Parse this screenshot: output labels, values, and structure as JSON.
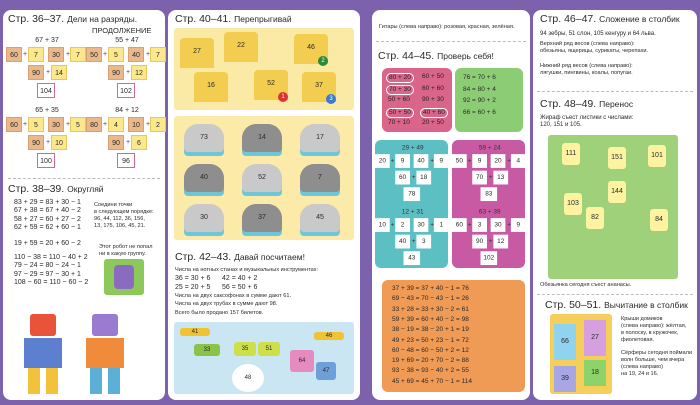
{
  "colors": {
    "background": "#7c62ad",
    "tan_box": "#e9b98b",
    "yellow_box": "#fbe78c",
    "pink_panel": "#d9658a",
    "green_panel": "#8ccc74",
    "teal_panel": "#5bbfc4",
    "magenta_panel": "#c85aa3",
    "orange_panel": "#ef9a55"
  },
  "s36": {
    "title": "Стр. 36–37.",
    "subtitle": "Дели на разряды.",
    "subtitle2": "ПРОДОЛЖЕНИЕ",
    "diagrams": [
      {
        "expr": "67 + 37",
        "parts": [
          "60",
          "7",
          "30",
          "7"
        ],
        "sums": [
          "90",
          "14"
        ],
        "total": "104"
      },
      {
        "expr": "55 + 47",
        "parts": [
          "50",
          "5",
          "40",
          "7"
        ],
        "sums": [
          "90",
          "12"
        ],
        "total": "102"
      },
      {
        "expr": "65 + 35",
        "parts": [
          "60",
          "5",
          "30",
          "5"
        ],
        "sums": [
          "90",
          "10"
        ],
        "total": "100"
      },
      {
        "expr": "84 + 12",
        "parts": [
          "80",
          "4",
          "10",
          "2"
        ],
        "sums": [
          "90",
          "6"
        ],
        "total": "96"
      }
    ]
  },
  "s38": {
    "title": "Стр. 38–39.",
    "subtitle": "Округляй",
    "eq1": [
      "83 + 29 = 83 + 30 − 1",
      "67 + 38 = 67 + 40 − 2",
      "58 + 27 = 60 + 27 − 2",
      "62 + 59 = 62 + 60 − 1"
    ],
    "eq2": [
      "19 + 59 = 20 + 60 − 2"
    ],
    "eq3": [
      "110 − 38 = 110 − 40 + 2",
      "79 − 24 = 80 − 24 − 1",
      "97 − 29 = 97 − 30 + 1",
      "108 − 60 = 110 − 60 − 2"
    ],
    "dots_note": [
      "Соедини точки",
      "в следующем порядке:",
      "96, 44, 112, 36, 156,",
      "13, 175, 106, 45, 21."
    ],
    "robot_note": [
      "Этот робот не попал",
      "ни в какую группу."
    ]
  },
  "s40": {
    "title": "Стр. 40–41.",
    "subtitle": "Перепрыгивай",
    "castles": [
      "27",
      "22",
      "46",
      "16",
      "52",
      "37"
    ],
    "ribbons": [
      "1",
      "2",
      "3"
    ],
    "rocks": [
      "73",
      "14",
      "17",
      "40",
      "52",
      "7",
      "30",
      "37",
      "45"
    ]
  },
  "s42": {
    "title": "Стр. 42–43.",
    "subtitle": "Давай посчитаем!",
    "lines": [
      "Числа на нотных станах и музыкальных инструментах:",
      "Числа на двух саксофонах в сумме дают 61.",
      "Числа на двух трубах в сумме дают 98.",
      "Всего было продано 157 билетов."
    ],
    "eqs": [
      [
        "36 = 30 + 6",
        "42 = 40 + 2"
      ],
      [
        "25 = 20 + 5",
        "56 = 50 + 6"
      ]
    ],
    "drums": [
      "41",
      "33",
      "35",
      "51",
      "48",
      "64",
      "47",
      "46"
    ]
  },
  "s44": {
    "top_note": "Гитары (слева направо): розовая, красная, зелёная.",
    "title": "Стр. 44–45.",
    "subtitle": "Проверь себя!",
    "pink": [
      [
        "80 + 20",
        "60 + 50"
      ],
      [
        "70 + 30",
        "60 + 60"
      ],
      [
        "50 + 60",
        "90 + 30"
      ],
      [
        "50 + 50",
        "40 + 60"
      ],
      [
        "70 + 10",
        "20 + 50"
      ]
    ],
    "pink_circled": [
      [
        true,
        false
      ],
      [
        true,
        false
      ],
      [
        false,
        false
      ],
      [
        true,
        true
      ],
      [
        false,
        false
      ]
    ],
    "green": [
      "76 = 70 + 6",
      "84 = 80 + 4",
      "92 = 90 + 2",
      "66 = 60 + 6"
    ],
    "teal": [
      {
        "expr": "29 + 49",
        "parts": [
          "20",
          "9",
          "40",
          "9"
        ],
        "sums": [
          "60",
          "18"
        ],
        "total": "78"
      },
      {
        "expr": "12 + 31",
        "parts": [
          "10",
          "2",
          "30",
          "1"
        ],
        "sums": [
          "40",
          "3"
        ],
        "total": "43"
      }
    ],
    "magenta": [
      {
        "expr": "59 + 24",
        "parts": [
          "50",
          "9",
          "20",
          "4"
        ],
        "sums": [
          "70",
          "13"
        ],
        "total": "83"
      },
      {
        "expr": "63 + 39",
        "parts": [
          "60",
          "3",
          "30",
          "9"
        ],
        "sums": [
          "90",
          "12"
        ],
        "total": "102"
      }
    ],
    "orange": [
      "37 + 39 = 37 + 40 − 1 = 76",
      "69 − 43 = 70 − 43 − 1 = 26",
      "33 + 28 = 33 + 30 − 2 = 61",
      "59 + 39 = 60 + 40 − 2 = 98",
      "38 − 19 = 38 − 20 + 1 = 19",
      "49 + 23 = 50 + 23 − 1 = 72",
      "60 − 48 = 60 − 50 + 2 = 12",
      "19 + 69 = 20 + 70 − 2 = 88",
      "93 − 38 = 93 − 40 + 2 = 55",
      "45 + 69 = 45 + 70 − 1 = 114"
    ]
  },
  "s46": {
    "title": "Стр. 46–47.",
    "subtitle": "Сложение в столбик",
    "line1": "94 зебры, 51 слон, 105 кенгуру и 64 льва.",
    "upper": [
      "Верхний ряд весов (слева направо):",
      "обезьяны, ящерицы, сурикаты, черепахи."
    ],
    "lower": [
      "Нижний ряд весов (слева направо):",
      "лягушки, пингвины, коалы, попугаи."
    ]
  },
  "s48": {
    "title": "Стр. 48–49.",
    "subtitle": "Перенос",
    "note": [
      "Жираф съест листики с числами:",
      "120, 151 и 105."
    ],
    "leaves": [
      "111",
      "151",
      "101",
      "144",
      "103",
      "82",
      "84"
    ],
    "caption": "Обезьянка сегодня съест ананасы."
  },
  "s50": {
    "title": "Стр. 50–51.",
    "subtitle": "Вычитание в столбик",
    "note1": [
      "Крыши домиков",
      "(слева направо): жёлтая,",
      "в полоску, в кружочек,",
      "фиолетовая."
    ],
    "note2": [
      "Сёрферы сегодня поймали",
      "волн больше, чем вчера",
      "(слева направо)",
      "на 19, 24 и 16."
    ],
    "towels": [
      "66",
      "27",
      "18",
      "39"
    ]
  }
}
